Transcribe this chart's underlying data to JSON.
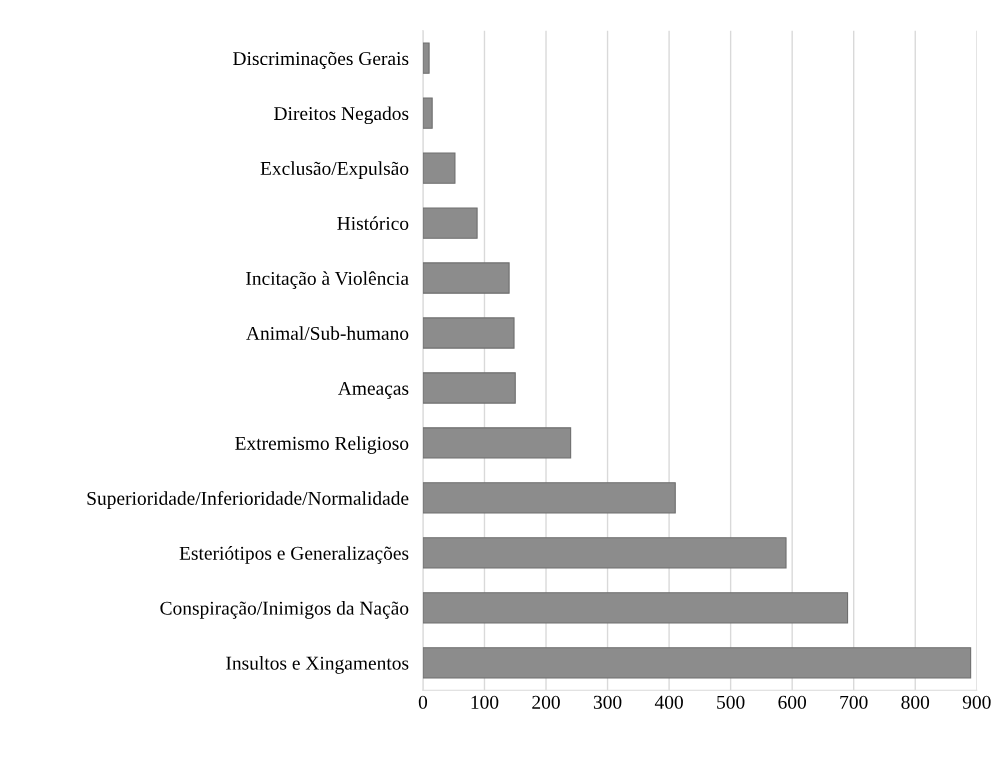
{
  "chart_data": {
    "type": "bar",
    "orientation": "horizontal",
    "categories": [
      "Discriminações Gerais",
      "Direitos Negados",
      "Exclusão/Expulsão",
      "Histórico",
      "Incitação à Violência",
      "Animal/Sub-humano",
      "Ameaças",
      "Extremismo Religioso",
      "Superioridade/Inferioridade/Normalidade",
      "Esteriótipos e Generalizações",
      "Conspiração/Inimigos da Nação",
      "Insultos e Xingamentos"
    ],
    "values": [
      10,
      15,
      52,
      88,
      140,
      148,
      150,
      240,
      410,
      590,
      690,
      890
    ],
    "color": "#8c8c8c",
    "xlim": [
      0,
      900
    ],
    "xticks": [
      0,
      100,
      200,
      300,
      400,
      500,
      600,
      700,
      800,
      900
    ],
    "grid": "x",
    "legend": false
  }
}
